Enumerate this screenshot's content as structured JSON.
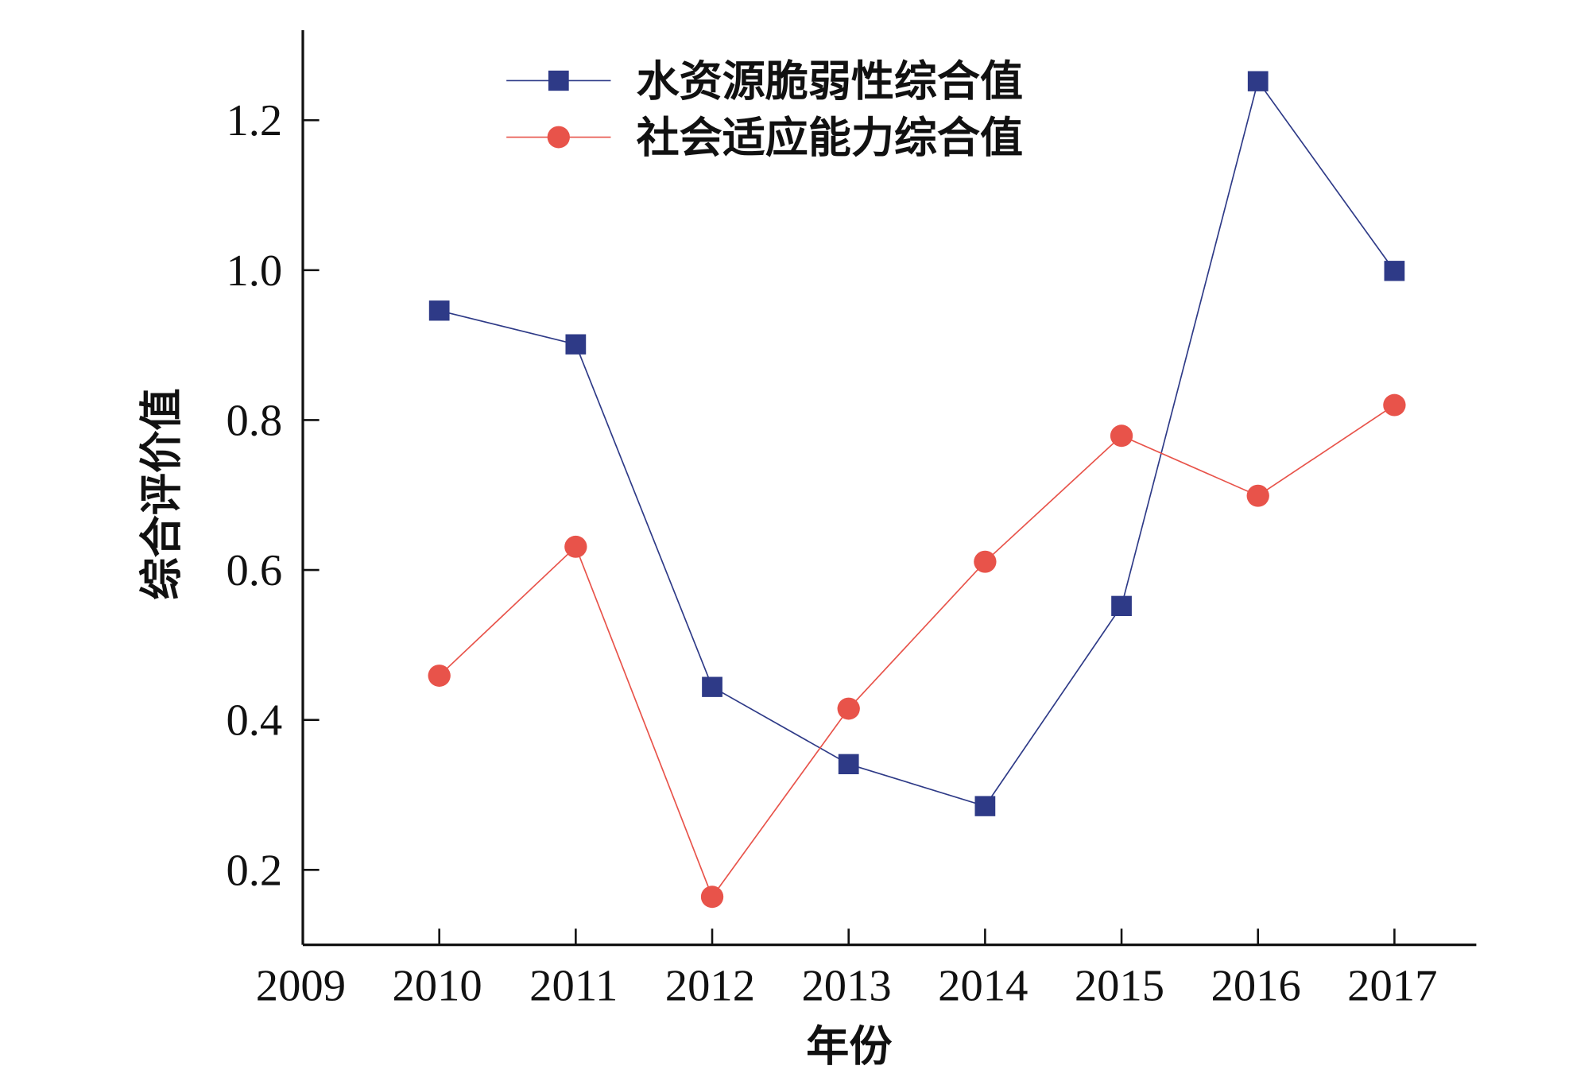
{
  "chart_data": {
    "type": "line",
    "title": "",
    "xlabel": "年份",
    "ylabel": "综合评价值",
    "xlim": [
      2009,
      2017.6
    ],
    "ylim": [
      0.1,
      1.32
    ],
    "x_ticks": [
      2009,
      2010,
      2011,
      2012,
      2013,
      2014,
      2015,
      2016,
      2017
    ],
    "x_tick_labels": [
      "2009",
      "2010",
      "2011",
      "2012",
      "2013",
      "2014",
      "2015",
      "2016",
      "2017"
    ],
    "y_ticks": [
      0.2,
      0.4,
      0.6,
      0.8,
      1.0,
      1.2
    ],
    "y_tick_labels": [
      "0.2",
      "0.4",
      "0.6",
      "0.8",
      "1.0",
      "1.2"
    ],
    "grid": false,
    "legend_position": "top-center",
    "x": [
      2010,
      2011,
      2012,
      2013,
      2014,
      2015,
      2016,
      2017
    ],
    "series": [
      {
        "name": "水资源脆弱性综合值",
        "marker": "square",
        "color": "#2e3a87",
        "values": [
          0.946,
          0.901,
          0.444,
          0.341,
          0.285,
          0.552,
          1.252,
          0.999
        ]
      },
      {
        "name": "社会适应能力综合值",
        "marker": "circle",
        "color": "#e8534a",
        "values": [
          0.459,
          0.631,
          0.164,
          0.415,
          0.611,
          0.779,
          0.699,
          0.82
        ]
      }
    ]
  }
}
